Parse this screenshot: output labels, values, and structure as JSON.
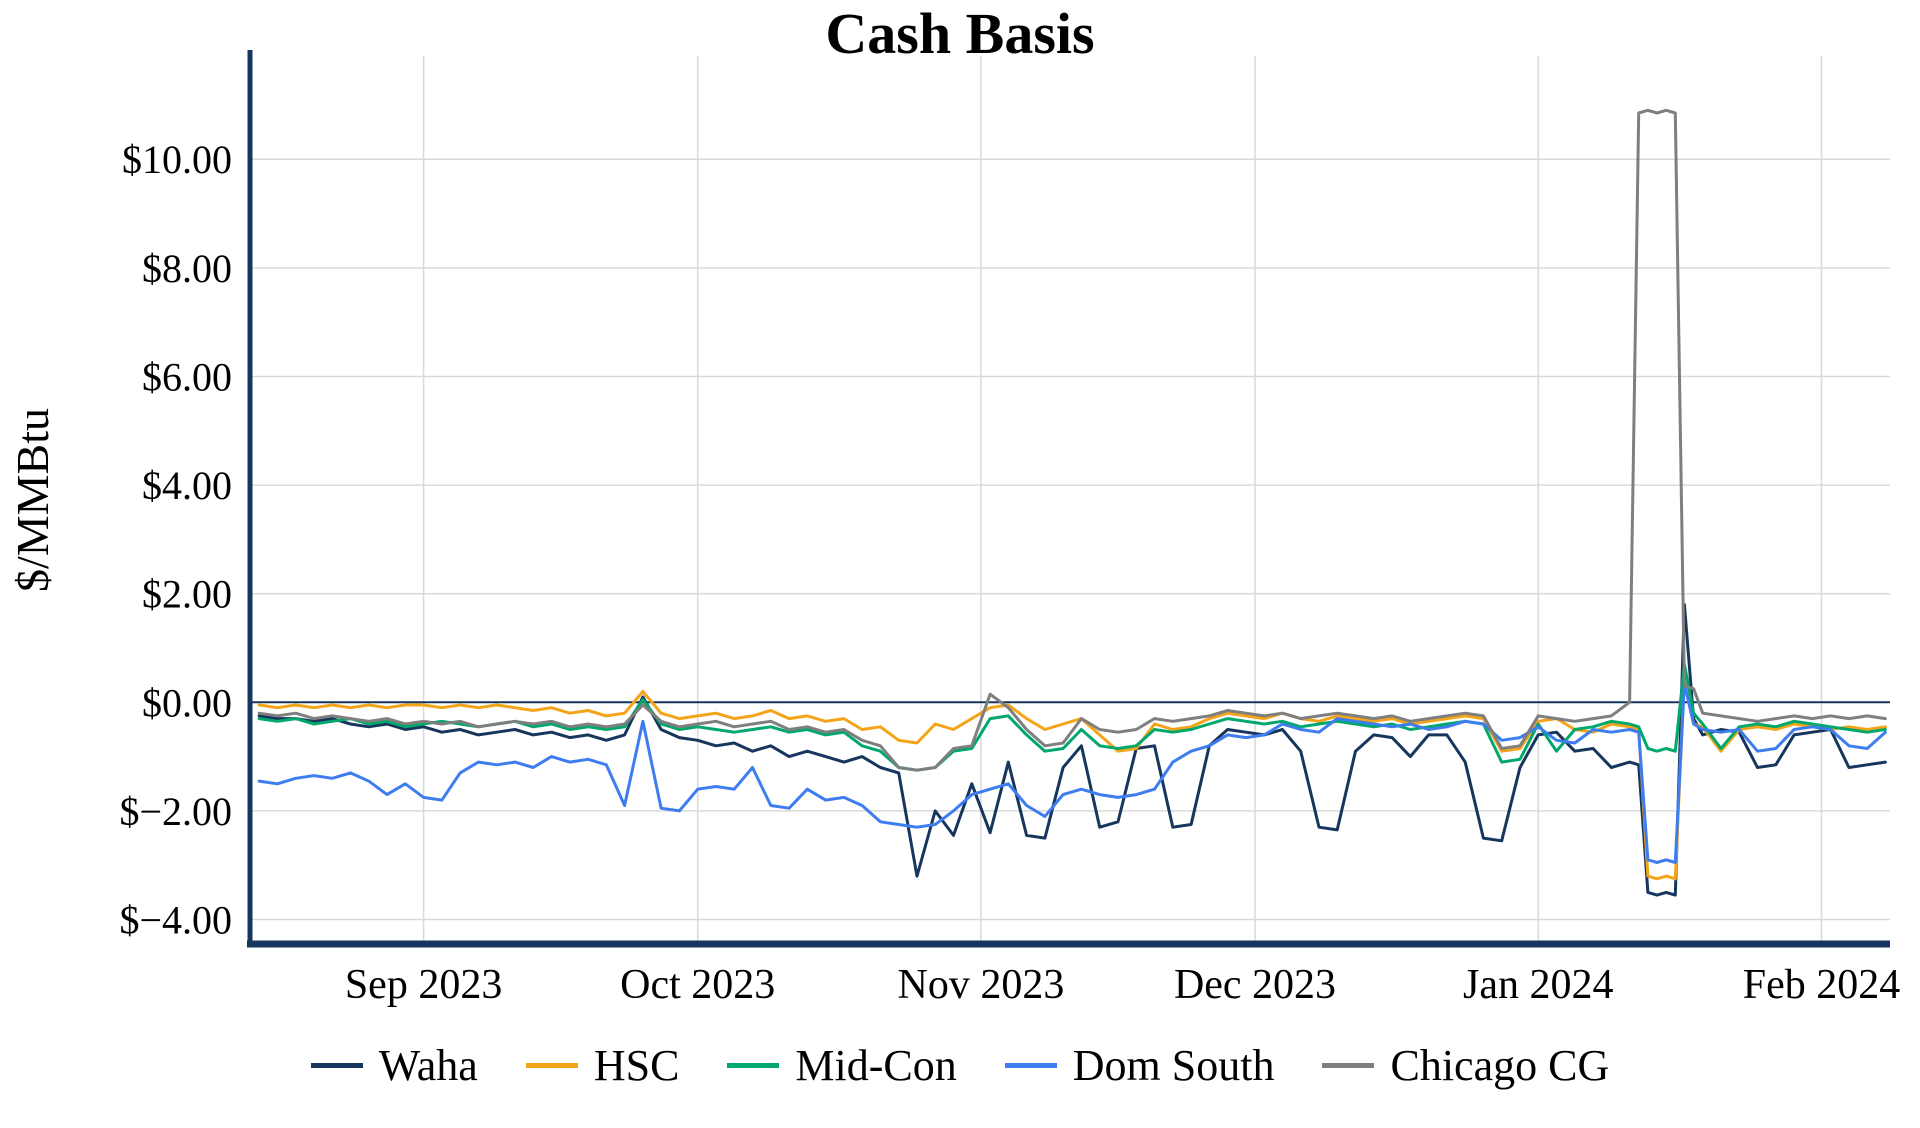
{
  "title": "Cash Basis",
  "style": {
    "background": "#ffffff",
    "axis_color": "#17365d",
    "zero_line_color": "#17365d",
    "grid_color": "#d9d9d9",
    "text_color": "#000000"
  },
  "chart_data": {
    "type": "line",
    "title": "Cash Basis",
    "xlabel": "",
    "ylabel": "$/MMBtu",
    "grid": true,
    "legend_position": "bottom",
    "xlim": [
      -1,
      178.5
    ],
    "ylim": [
      -4.45,
      11.9
    ],
    "y_ticks": [
      {
        "value": 10,
        "label": "$10.00"
      },
      {
        "value": 8,
        "label": "$8.00"
      },
      {
        "value": 6,
        "label": "$6.00"
      },
      {
        "value": 4,
        "label": "$4.00"
      },
      {
        "value": 2,
        "label": "$2.00"
      },
      {
        "value": 0,
        "label": "$0.00"
      },
      {
        "value": -2,
        "label": "$−2.00"
      },
      {
        "value": -4,
        "label": "$−4.00"
      }
    ],
    "x_ticks": [
      {
        "x": 18,
        "label": "Sep 2023"
      },
      {
        "x": 48,
        "label": "Oct 2023"
      },
      {
        "x": 79,
        "label": "Nov 2023"
      },
      {
        "x": 109,
        "label": "Dec 2023"
      },
      {
        "x": 140,
        "label": "Jan 2024"
      },
      {
        "x": 171,
        "label": "Feb 2024"
      }
    ],
    "x": [
      0,
      2,
      4,
      6,
      8,
      10,
      12,
      14,
      16,
      18,
      20,
      22,
      24,
      26,
      28,
      30,
      32,
      34,
      36,
      38,
      40,
      42,
      44,
      46,
      48,
      50,
      52,
      54,
      56,
      58,
      60,
      62,
      64,
      66,
      68,
      70,
      72,
      74,
      76,
      78,
      80,
      82,
      84,
      86,
      88,
      90,
      92,
      94,
      96,
      98,
      100,
      102,
      104,
      106,
      108,
      110,
      112,
      114,
      116,
      118,
      120,
      122,
      124,
      126,
      128,
      130,
      132,
      134,
      136,
      138,
      140,
      142,
      144,
      146,
      148,
      150,
      151,
      152,
      153,
      154,
      155,
      156,
      157,
      158,
      160,
      162,
      164,
      166,
      168,
      170,
      172,
      174,
      176,
      178
    ],
    "series": [
      {
        "name": "Waha",
        "color": "#17365d",
        "values": [
          -0.25,
          -0.3,
          -0.3,
          -0.35,
          -0.3,
          -0.4,
          -0.45,
          -0.4,
          -0.5,
          -0.45,
          -0.55,
          -0.5,
          -0.6,
          -0.55,
          -0.5,
          -0.6,
          -0.55,
          -0.65,
          -0.6,
          -0.7,
          -0.6,
          0.1,
          -0.5,
          -0.65,
          -0.7,
          -0.8,
          -0.75,
          -0.9,
          -0.8,
          -1.0,
          -0.9,
          -1.0,
          -1.1,
          -1.0,
          -1.2,
          -1.3,
          -3.2,
          -2.0,
          -2.45,
          -1.5,
          -2.4,
          -1.1,
          -2.45,
          -2.5,
          -1.2,
          -0.8,
          -2.3,
          -2.2,
          -0.85,
          -0.8,
          -2.3,
          -2.25,
          -0.8,
          -0.5,
          -0.55,
          -0.6,
          -0.5,
          -0.9,
          -2.3,
          -2.35,
          -0.9,
          -0.6,
          -0.65,
          -1.0,
          -0.6,
          -0.6,
          -1.1,
          -2.5,
          -2.55,
          -1.2,
          -0.6,
          -0.55,
          -0.9,
          -0.85,
          -1.2,
          -1.1,
          -1.15,
          -3.5,
          -3.55,
          -3.5,
          -3.55,
          1.8,
          -0.3,
          -0.6,
          -0.5,
          -0.55,
          -1.2,
          -1.15,
          -0.6,
          -0.55,
          -0.5,
          -1.2,
          -1.15,
          -1.1
        ]
      },
      {
        "name": "HSC",
        "color": "#f4a418",
        "values": [
          -0.05,
          -0.1,
          -0.05,
          -0.1,
          -0.05,
          -0.1,
          -0.05,
          -0.1,
          -0.05,
          -0.05,
          -0.1,
          -0.05,
          -0.1,
          -0.05,
          -0.1,
          -0.15,
          -0.1,
          -0.2,
          -0.15,
          -0.25,
          -0.2,
          0.2,
          -0.2,
          -0.3,
          -0.25,
          -0.2,
          -0.3,
          -0.25,
          -0.15,
          -0.3,
          -0.25,
          -0.35,
          -0.3,
          -0.5,
          -0.45,
          -0.7,
          -0.75,
          -0.4,
          -0.5,
          -0.3,
          -0.1,
          -0.05,
          -0.3,
          -0.5,
          -0.4,
          -0.3,
          -0.6,
          -0.9,
          -0.85,
          -0.4,
          -0.5,
          -0.45,
          -0.3,
          -0.2,
          -0.25,
          -0.3,
          -0.2,
          -0.3,
          -0.35,
          -0.25,
          -0.3,
          -0.35,
          -0.3,
          -0.4,
          -0.35,
          -0.3,
          -0.25,
          -0.3,
          -0.9,
          -0.85,
          -0.35,
          -0.3,
          -0.5,
          -0.55,
          -0.4,
          -0.45,
          -0.5,
          -3.2,
          -3.25,
          -3.2,
          -3.25,
          0.5,
          -0.4,
          -0.45,
          -0.9,
          -0.5,
          -0.45,
          -0.5,
          -0.4,
          -0.45,
          -0.5,
          -0.45,
          -0.5,
          -0.45
        ]
      },
      {
        "name": "Mid-Con",
        "color": "#00a86b",
        "values": [
          -0.3,
          -0.35,
          -0.3,
          -0.4,
          -0.35,
          -0.3,
          -0.4,
          -0.35,
          -0.45,
          -0.4,
          -0.35,
          -0.4,
          -0.45,
          -0.4,
          -0.35,
          -0.45,
          -0.4,
          -0.5,
          -0.45,
          -0.5,
          -0.45,
          0.05,
          -0.4,
          -0.5,
          -0.45,
          -0.5,
          -0.55,
          -0.5,
          -0.45,
          -0.55,
          -0.5,
          -0.6,
          -0.55,
          -0.8,
          -0.9,
          -1.2,
          -1.25,
          -1.2,
          -0.9,
          -0.85,
          -0.3,
          -0.25,
          -0.6,
          -0.9,
          -0.85,
          -0.5,
          -0.8,
          -0.85,
          -0.8,
          -0.5,
          -0.55,
          -0.5,
          -0.4,
          -0.3,
          -0.35,
          -0.4,
          -0.35,
          -0.45,
          -0.4,
          -0.35,
          -0.4,
          -0.45,
          -0.4,
          -0.5,
          -0.45,
          -0.4,
          -0.35,
          -0.4,
          -1.1,
          -1.05,
          -0.4,
          -0.9,
          -0.5,
          -0.45,
          -0.35,
          -0.4,
          -0.45,
          -0.85,
          -0.9,
          -0.85,
          -0.9,
          0.7,
          -0.2,
          -0.4,
          -0.85,
          -0.45,
          -0.4,
          -0.45,
          -0.35,
          -0.4,
          -0.45,
          -0.5,
          -0.55,
          -0.5
        ]
      },
      {
        "name": "Dom South",
        "color": "#3e7df0",
        "values": [
          -1.45,
          -1.5,
          -1.4,
          -1.35,
          -1.4,
          -1.3,
          -1.45,
          -1.7,
          -1.5,
          -1.75,
          -1.8,
          -1.3,
          -1.1,
          -1.15,
          -1.1,
          -1.2,
          -1.0,
          -1.1,
          -1.05,
          -1.15,
          -1.9,
          -0.35,
          -1.95,
          -2.0,
          -1.6,
          -1.55,
          -1.6,
          -1.2,
          -1.9,
          -1.95,
          -1.6,
          -1.8,
          -1.75,
          -1.9,
          -2.2,
          -2.25,
          -2.3,
          -2.25,
          -2.0,
          -1.7,
          -1.6,
          -1.5,
          -1.9,
          -2.1,
          -1.7,
          -1.6,
          -1.7,
          -1.75,
          -1.7,
          -1.6,
          -1.1,
          -0.9,
          -0.8,
          -0.6,
          -0.65,
          -0.6,
          -0.4,
          -0.5,
          -0.55,
          -0.3,
          -0.35,
          -0.4,
          -0.45,
          -0.4,
          -0.5,
          -0.45,
          -0.35,
          -0.4,
          -0.7,
          -0.65,
          -0.45,
          -0.7,
          -0.75,
          -0.5,
          -0.55,
          -0.5,
          -0.55,
          -2.9,
          -2.95,
          -2.9,
          -2.95,
          0.35,
          -0.4,
          -0.5,
          -0.55,
          -0.5,
          -0.9,
          -0.85,
          -0.5,
          -0.45,
          -0.5,
          -0.8,
          -0.85,
          -0.55
        ]
      },
      {
        "name": "Chicago CG",
        "color": "#7f7f7f",
        "values": [
          -0.2,
          -0.25,
          -0.2,
          -0.3,
          -0.25,
          -0.3,
          -0.35,
          -0.3,
          -0.4,
          -0.35,
          -0.4,
          -0.35,
          -0.45,
          -0.4,
          -0.35,
          -0.4,
          -0.35,
          -0.45,
          -0.4,
          -0.45,
          -0.4,
          -0.05,
          -0.35,
          -0.45,
          -0.4,
          -0.35,
          -0.45,
          -0.4,
          -0.35,
          -0.5,
          -0.45,
          -0.55,
          -0.5,
          -0.7,
          -0.8,
          -1.2,
          -1.25,
          -1.2,
          -0.85,
          -0.8,
          0.15,
          -0.1,
          -0.5,
          -0.8,
          -0.75,
          -0.3,
          -0.5,
          -0.55,
          -0.5,
          -0.3,
          -0.35,
          -0.3,
          -0.25,
          -0.15,
          -0.2,
          -0.25,
          -0.2,
          -0.3,
          -0.25,
          -0.2,
          -0.25,
          -0.3,
          -0.25,
          -0.35,
          -0.3,
          -0.25,
          -0.2,
          -0.25,
          -0.85,
          -0.8,
          -0.25,
          -0.3,
          -0.35,
          -0.3,
          -0.25,
          0.0,
          10.85,
          10.9,
          10.85,
          10.9,
          10.85,
          0.3,
          0.25,
          -0.2,
          -0.25,
          -0.3,
          -0.35,
          -0.3,
          -0.25,
          -0.3,
          -0.25,
          -0.3,
          -0.25,
          -0.3
        ]
      }
    ]
  }
}
